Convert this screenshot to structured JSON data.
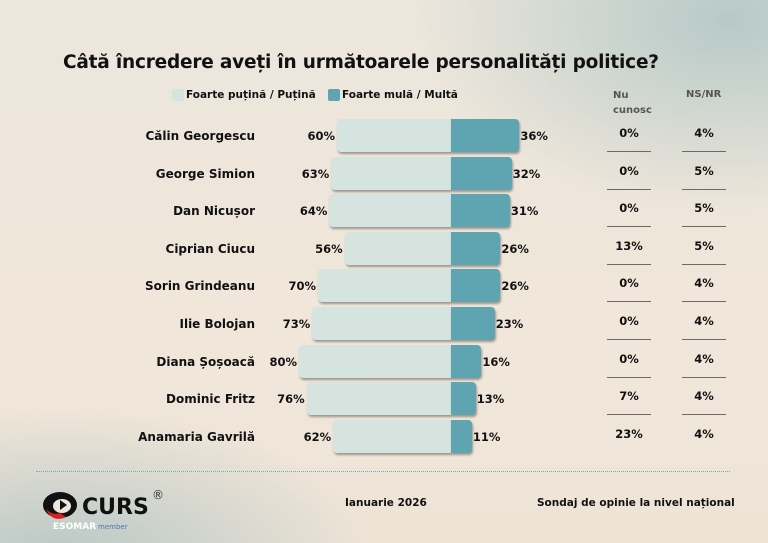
{
  "title": "Câtă încredere aveți în următoarele personalități politice?",
  "legend": [
    {
      "label": "Foarte puțină / Puțină",
      "color": "#d6e4df"
    },
    {
      "label": "Foarte mulă / Multă",
      "color": "#5fa4b1"
    }
  ],
  "columns": {
    "nu_cunosc": "Nu cunosc",
    "nu_cunosc_l1": "Nu",
    "nu_cunosc_l2": "cunosc",
    "nsnr": "NS/NR"
  },
  "rows": [
    {
      "name": "Călin Georgescu",
      "low": "60%",
      "high": "36%",
      "nu": "0%",
      "ns": "4%"
    },
    {
      "name": "George Simion",
      "low": "63%",
      "high": "32%",
      "nu": "0%",
      "ns": "5%"
    },
    {
      "name": "Dan Nicușor",
      "low": "64%",
      "high": "31%",
      "nu": "0%",
      "ns": "5%"
    },
    {
      "name": "Ciprian Ciucu",
      "low": "56%",
      "high": "26%",
      "nu": "13%",
      "ns": "5%"
    },
    {
      "name": "Sorin Grindeanu",
      "low": "70%",
      "high": "26%",
      "nu": "0%",
      "ns": "4%"
    },
    {
      "name": "Ilie Bolojan",
      "low": "73%",
      "high": "23%",
      "nu": "0%",
      "ns": "4%"
    },
    {
      "name": "Diana Șoșoacă",
      "low": "80%",
      "high": "16%",
      "nu": "0%",
      "ns": "4%"
    },
    {
      "name": "Dominic Fritz",
      "low": "76%",
      "high": "13%",
      "nu": "7%",
      "ns": "4%"
    },
    {
      "name": "Anamaria Gavrilă",
      "low": "62%",
      "high": "11%",
      "nu": "23%",
      "ns": "4%"
    }
  ],
  "footer": {
    "date": "Ianuarie 2026",
    "survey": "Sondaj de opinie la nivel național"
  },
  "logo": {
    "brand": "CURS",
    "registered": "®",
    "esomar": "ESOMAR",
    "member": "member"
  },
  "chart_data": {
    "type": "bar",
    "orientation": "horizontal-diverging",
    "title": "Câtă încredere aveți în următoarele personalități politice?",
    "categories": [
      "Călin Georgescu",
      "George Simion",
      "Dan Nicușor",
      "Ciprian Ciucu",
      "Sorin Grindeanu",
      "Ilie Bolojan",
      "Diana Șoșoacă",
      "Dominic Fritz",
      "Anamaria Gavrilă"
    ],
    "series": [
      {
        "name": "Foarte puțină / Puțină",
        "values": [
          60,
          63,
          64,
          56,
          70,
          73,
          80,
          76,
          62
        ]
      },
      {
        "name": "Foarte mulă / Multă",
        "values": [
          36,
          32,
          31,
          26,
          26,
          23,
          16,
          13,
          11
        ]
      },
      {
        "name": "Nu cunosc",
        "values": [
          0,
          0,
          0,
          13,
          0,
          0,
          0,
          7,
          23
        ]
      },
      {
        "name": "NS/NR",
        "values": [
          4,
          5,
          5,
          5,
          4,
          4,
          4,
          4,
          4
        ]
      }
    ],
    "unit": "%",
    "legend_position": "top",
    "grid": false
  }
}
